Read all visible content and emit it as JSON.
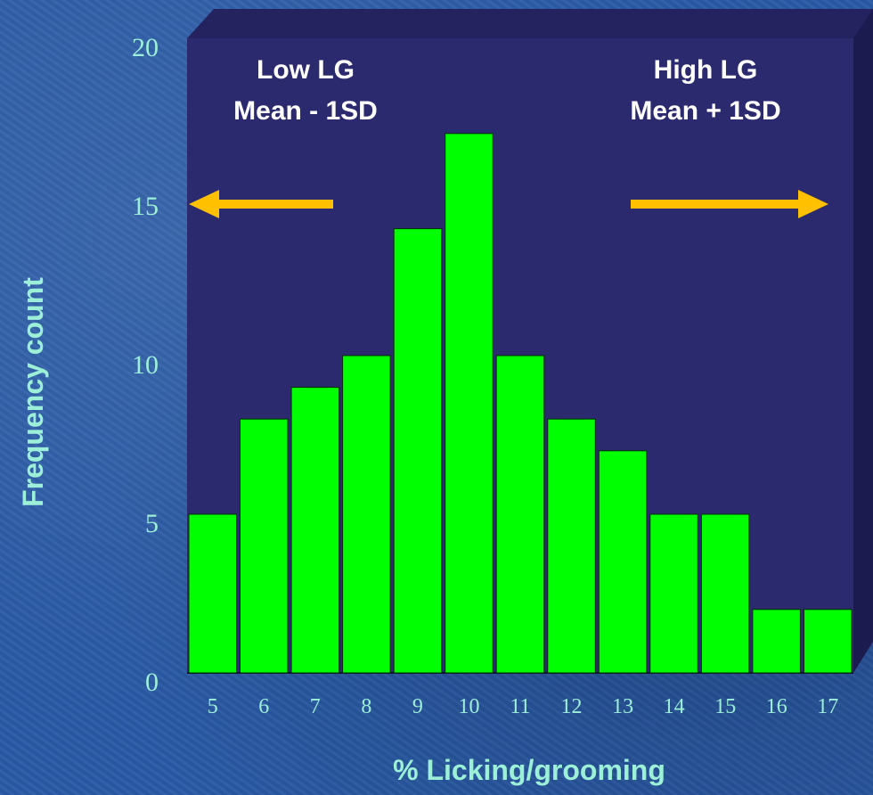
{
  "chart_data": {
    "type": "bar",
    "title": "",
    "xlabel": "% Licking/grooming",
    "ylabel": "Frequency count",
    "ylim": [
      0,
      20
    ],
    "yticks": [
      "0",
      "5",
      "10",
      "15",
      "20"
    ],
    "categories": [
      "5",
      "6",
      "7",
      "8",
      "9",
      "10",
      "11",
      "12",
      "13",
      "14",
      "15",
      "16",
      "17"
    ],
    "values": [
      5,
      8,
      9,
      10,
      14,
      17,
      10,
      8,
      7,
      5,
      5,
      2,
      2
    ],
    "annotations": {
      "low_line1": "Low LG",
      "low_line2": "Mean - 1SD",
      "high_line1": "High LG",
      "high_line2": "Mean + 1SD"
    },
    "grid": false,
    "legend": "none"
  },
  "colors": {
    "bar": "#00ff00",
    "plot_bg": "#2b2a6e",
    "arrow": "#ffc000",
    "text": "#9cf0d8",
    "annotation": "#ffffff"
  }
}
